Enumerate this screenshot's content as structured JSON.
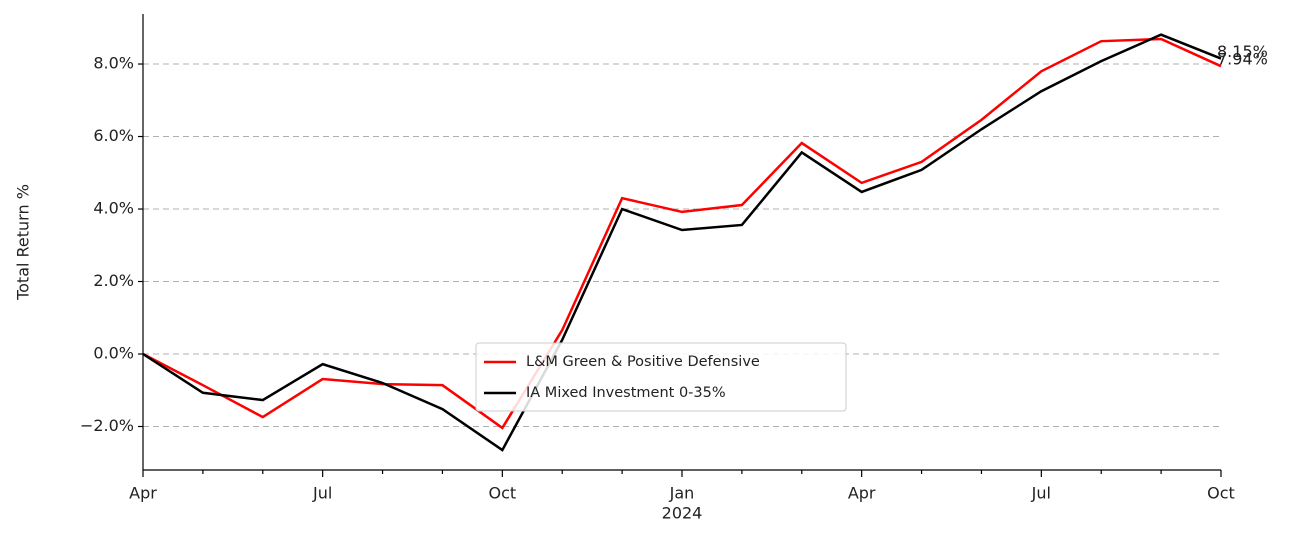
{
  "chart_data": {
    "type": "line",
    "y_label": "Total Return %",
    "categories": [
      "Apr",
      null,
      null,
      "Jul",
      null,
      null,
      "Oct",
      null,
      null,
      "Jan",
      null,
      null,
      "Apr",
      null,
      null,
      "Jul",
      null,
      null,
      "Oct"
    ],
    "x_sublabels": [
      null,
      null,
      null,
      null,
      null,
      null,
      null,
      null,
      null,
      "2024",
      null,
      null,
      null,
      null,
      null,
      null,
      null,
      null,
      null
    ],
    "series": [
      {
        "name": "L&M Green & Positive Defensive",
        "color": "#ff0000",
        "values": [
          0,
          -0.86,
          -1.74,
          -0.69,
          -0.83,
          -0.86,
          -2.04,
          0.66,
          4.3,
          3.92,
          4.11,
          5.82,
          4.72,
          5.3,
          6.46,
          7.8,
          8.63,
          8.69,
          7.94
        ],
        "value_labels": [
          null,
          null,
          null,
          null,
          null,
          null,
          null,
          null,
          null,
          null,
          null,
          null,
          null,
          null,
          null,
          null,
          null,
          null,
          "7.94%"
        ]
      },
      {
        "name": "IA Mixed Investment 0-35%",
        "color": "#000000",
        "values": [
          0,
          -1.07,
          -1.27,
          -0.28,
          -0.8,
          -1.52,
          -2.65,
          0.39,
          4.0,
          3.42,
          3.56,
          5.56,
          4.47,
          5.08,
          6.2,
          7.25,
          8.08,
          8.81,
          8.15
        ],
        "value_labels": [
          null,
          null,
          null,
          null,
          null,
          null,
          null,
          null,
          null,
          null,
          null,
          null,
          null,
          null,
          null,
          null,
          null,
          null,
          "8.15%"
        ]
      }
    ],
    "ylim": [
      -3.2,
      9.38
    ],
    "yticks": [
      {
        "value": -2,
        "label": "−2.0%"
      },
      {
        "value": 0,
        "label": "0.0%"
      },
      {
        "value": 2,
        "label": "2.0%"
      },
      {
        "value": 4,
        "label": "4.0%"
      },
      {
        "value": 6,
        "label": "6.0%"
      },
      {
        "value": 8,
        "label": "8.0%"
      }
    ],
    "grid": true,
    "legend": "lower center"
  }
}
